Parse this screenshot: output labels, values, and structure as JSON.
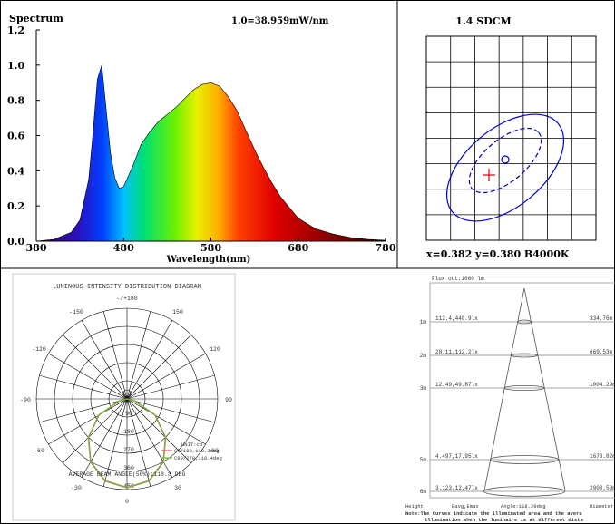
{
  "spectrum": {
    "title": "Spectrum",
    "scale_note": "1.0=38.959mW/nm",
    "xlabel": "Wavelength(nm)",
    "x_ticks": [
      "380",
      "480",
      "580",
      "680",
      "780"
    ],
    "y_ticks": [
      "0.0",
      "0.2",
      "0.4",
      "0.6",
      "0.8",
      "1.0",
      "1.2"
    ]
  },
  "sdcm": {
    "title": "1.4 SDCM",
    "readout": "x=0.382 y=0.380 B4000K"
  },
  "polar": {
    "title": "LUMINOUS INTENSITY DISTRIBUTION DIAGRAM",
    "angle_labels": [
      "-/+180",
      "-150",
      "150",
      "-120",
      "120",
      "-90",
      "90",
      "-60",
      "60",
      "-30",
      "30",
      "0"
    ],
    "radial_labels": [
      "90",
      "180",
      "270",
      "360",
      "450"
    ],
    "unit": "UNIT:cd",
    "legend": [
      "C0/180,118.3deg",
      "C90/270,118.4deg"
    ],
    "beam_angle": "AVERAGE BEAM ANGLE(50%):118.3 DEG",
    "colors": {
      "c0": "#e05060",
      "c90": "#7ab040"
    }
  },
  "illum": {
    "flux": "Flux out:1060 lm",
    "rows": [
      {
        "h": "1m",
        "e": "112.4,448.9lx",
        "d": "334.76m"
      },
      {
        "h": "2m",
        "e": "28.11,112.2lx",
        "d": "669.53m"
      },
      {
        "h": "3m",
        "e": "12.49,49.87lx",
        "d": "1004.29m"
      },
      {
        "h": "5m",
        "e": "4.497,17.95lx",
        "d": "1673.82m"
      },
      {
        "h": "6m",
        "e": "3.123,12.47lx",
        "d": "2008.58m"
      }
    ],
    "col_height": "Height",
    "col_e": "Eavg,Emax",
    "col_angle": "Angle:118.29deg",
    "col_d": "Diameter",
    "note1": "Note:The Curves indicate the illuminated area and the avera",
    "note2": "illumination when the luminaire is at different dista"
  },
  "chart_data": [
    {
      "type": "area",
      "title": "Spectrum",
      "xlabel": "Wavelength(nm)",
      "ylabel": "",
      "xlim": [
        380,
        780
      ],
      "ylim": [
        0,
        1.2
      ],
      "x": [
        380,
        400,
        420,
        430,
        440,
        445,
        450,
        455,
        460,
        465,
        470,
        475,
        480,
        490,
        500,
        510,
        520,
        530,
        540,
        550,
        560,
        570,
        580,
        590,
        600,
        610,
        620,
        630,
        640,
        650,
        660,
        680,
        700,
        720,
        740,
        760,
        780
      ],
      "y": [
        0,
        0.01,
        0.05,
        0.12,
        0.35,
        0.62,
        0.92,
        1.0,
        0.75,
        0.5,
        0.36,
        0.3,
        0.31,
        0.42,
        0.55,
        0.62,
        0.68,
        0.72,
        0.76,
        0.81,
        0.86,
        0.89,
        0.9,
        0.88,
        0.82,
        0.74,
        0.63,
        0.52,
        0.42,
        0.33,
        0.25,
        0.13,
        0.07,
        0.04,
        0.02,
        0.01,
        0.005
      ]
    },
    {
      "type": "scatter",
      "title": "1.4 SDCM",
      "points": [
        {
          "x": 0.382,
          "y": 0.38,
          "label": "B4000K"
        }
      ]
    },
    {
      "type": "line",
      "title": "LUMINOUS INTENSITY DISTRIBUTION DIAGRAM",
      "series": [
        {
          "name": "C0/180,118.3deg",
          "angles_deg": [
            -90,
            -75,
            -60,
            -45,
            -30,
            -15,
            0,
            15,
            30,
            45,
            60,
            75,
            90
          ],
          "cd": [
            0,
            40,
            160,
            270,
            360,
            420,
            440,
            420,
            360,
            270,
            160,
            40,
            0
          ]
        },
        {
          "name": "C90/270,118.4deg",
          "angles_deg": [
            -90,
            -75,
            -60,
            -45,
            -30,
            -15,
            0,
            15,
            30,
            45,
            60,
            75,
            90
          ],
          "cd": [
            0,
            42,
            162,
            272,
            362,
            422,
            442,
            422,
            362,
            272,
            162,
            42,
            0
          ]
        }
      ]
    }
  ]
}
